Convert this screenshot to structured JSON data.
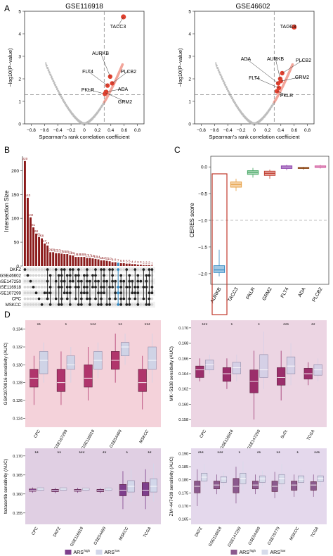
{
  "panel_letters": {
    "A": "A",
    "B": "B",
    "C": "C",
    "D": "D"
  },
  "panel_a": {
    "left": {
      "title": "GSE116918",
      "xlabel": "Spearman's rank correlation coefficient",
      "ylabel": "−log10(P−value)",
      "x_ticks": [
        "−0.8",
        "−0.6",
        "−0.4",
        "−0.2",
        "0",
        "0.2",
        "0.4",
        "0.6",
        "0.8"
      ],
      "y_ticks": [
        "0",
        "1",
        "2",
        "3",
        "4",
        "5"
      ],
      "gene_labels": [
        "TACC3",
        "AURKB",
        "FLT4",
        "PLCB2",
        "PKLR",
        "ADA",
        "GRM2"
      ]
    },
    "right": {
      "title": "GSE46602",
      "xlabel": "Spearman's rank correlation coefficient",
      "ylabel": "−log10(P−value)",
      "x_ticks": [
        "−0.8",
        "−0.6",
        "−0.4",
        "−0.2",
        "0",
        "0.2",
        "0.4",
        "0.6",
        "0.8"
      ],
      "y_ticks": [
        "0",
        "1",
        "2",
        "3",
        "4",
        "5"
      ],
      "gene_labels": [
        "TACC3",
        "ADA",
        "AURKB",
        "PLCB2",
        "FLT4",
        "GRM2",
        "PKLR"
      ]
    },
    "colors": {
      "gray": "#bdbdbd",
      "highlight": "#e0402e",
      "light": "#f2a59a"
    }
  },
  "panel_b": {
    "ylabel": "Intersection Size",
    "y_ticks": [
      "0",
      "50",
      "100",
      "150",
      "200"
    ],
    "sets": [
      "DKFZ",
      "GSE46602",
      "GSE147250",
      "GSE116918",
      "GSE107299",
      "CPC",
      "MSKCC"
    ],
    "bar_color": "#8b1a1a",
    "highlight_color": "#2e86c1"
  },
  "panel_c": {
    "ylabel": "CERES score",
    "y_ticks": [
      "0.0",
      "−0.5",
      "−1.0",
      "−1.5",
      "−2.0"
    ],
    "genes": [
      "AURKB",
      "TACC3",
      "PKLR",
      "GRM2",
      "FLT4",
      "ADA",
      "PLCB2"
    ]
  },
  "panel_d": {
    "legend_high": "ARS",
    "legend_high_sup": "high",
    "legend_low": "ARS",
    "legend_low_sup": "low",
    "plots": [
      {
        "ylabel": "GSK1070916 sensitivity (AUC)",
        "y_ticks": [
          "0.124",
          "0.126",
          "0.128",
          "0.130",
          "0.132",
          "0.134"
        ],
        "cats": [
          "CPC",
          "GSE107299",
          "GSE116918",
          "GSE54460",
          "MSKCC"
        ],
        "sig": [
          "**",
          "*",
          "***",
          "**",
          "***"
        ]
      },
      {
        "ylabel": "MK−5108 sensitivity (AUC)",
        "y_ticks": [
          "0.158",
          "0.160",
          "0.162",
          "0.164",
          "0.166",
          "0.168",
          "0.170"
        ],
        "cats": [
          "CPC",
          "GSE116918",
          "GSE147250",
          "Su2c",
          "TCGA"
        ],
        "sig": [
          "***",
          "*",
          "*",
          "***",
          "**"
        ]
      },
      {
        "ylabel": "tozasertib sensitivity (AUC)",
        "y_ticks": [
          "0.155",
          "0.160",
          "0.165",
          "0.170"
        ],
        "cats": [
          "CPC",
          "DKFZ",
          "GSE116918",
          "GSE54460",
          "MSKCC",
          "TCGA"
        ],
        "sig": [
          "**",
          "**",
          "***",
          "**",
          "*",
          "**"
        ]
      },
      {
        "ylabel": "ZM−447439 sensitivity (AUC)",
        "y_ticks": [
          "0.165",
          "0.170",
          "0.175",
          "0.180",
          "0.185",
          "0.190"
        ],
        "cats": [
          "DKFZ",
          "GSE116918",
          "GSE147250",
          "GSE54460",
          "GSE70770",
          "MSKCC",
          "TCGA"
        ],
        "sig": [
          "***",
          "***",
          "*",
          "**",
          "**",
          "*",
          "***"
        ]
      }
    ]
  },
  "chart_data": [
    {
      "type": "scatter",
      "title": "GSE116918",
      "xlabel": "Spearman's rank correlation coefficient",
      "ylabel": "−log10(P−value)",
      "xlim": [
        -0.9,
        0.9
      ],
      "ylim": [
        0,
        5
      ],
      "threshold_y": 1.3,
      "threshold_x": 0.3,
      "highlighted_genes": [
        {
          "name": "TACC3",
          "x": 0.59,
          "y": 4.75
        },
        {
          "name": "AURKB",
          "x": 0.39,
          "y": 2.1
        },
        {
          "name": "FLT4",
          "x": 0.35,
          "y": 1.7
        },
        {
          "name": "PLCB2",
          "x": 0.42,
          "y": 1.8
        },
        {
          "name": "PKLR",
          "x": 0.31,
          "y": 1.33
        },
        {
          "name": "ADA",
          "x": 0.33,
          "y": 1.42
        },
        {
          "name": "GRM2",
          "x": 0.32,
          "y": 1.38
        }
      ]
    },
    {
      "type": "scatter",
      "title": "GSE46602",
      "xlabel": "Spearman's rank correlation coefficient",
      "ylabel": "−log10(P−value)",
      "xlim": [
        -0.9,
        0.9
      ],
      "ylim": [
        0,
        5
      ],
      "threshold_y": 1.3,
      "threshold_x": 0.3,
      "highlighted_genes": [
        {
          "name": "TACC3",
          "x": 0.6,
          "y": 4.3
        },
        {
          "name": "ADA",
          "x": 0.36,
          "y": 1.8
        },
        {
          "name": "AURKB",
          "x": 0.39,
          "y": 2.0
        },
        {
          "name": "PLCB2",
          "x": 0.42,
          "y": 2.25
        },
        {
          "name": "FLT4",
          "x": 0.37,
          "y": 1.6
        },
        {
          "name": "GRM2",
          "x": 0.4,
          "y": 1.9
        },
        {
          "name": "PKLR",
          "x": 0.34,
          "y": 1.45
        }
      ]
    },
    {
      "type": "bar",
      "title": "",
      "ylabel": "Intersection Size",
      "ylim": [
        0,
        230
      ],
      "values": [
        220,
        143,
        102,
        81,
        68,
        61,
        58,
        47,
        43,
        29,
        29,
        27,
        27,
        26,
        25,
        25,
        23,
        22,
        19,
        19,
        19,
        19,
        17,
        17,
        16,
        15,
        14,
        12,
        12,
        11,
        10,
        8,
        8,
        7,
        6,
        6,
        5,
        5,
        4,
        4,
        3,
        3,
        2,
        2,
        2,
        1
      ],
      "data_labels": [
        "220",
        "143",
        "102",
        "81",
        "68",
        "61",
        "58",
        "47",
        "43",
        "29",
        "29",
        "27",
        "27",
        "26",
        "25",
        "25",
        "23",
        "22",
        "19",
        "19",
        "19",
        "19",
        "17",
        "17",
        "16",
        "15",
        "14",
        "12",
        "12",
        "11",
        "10",
        "8",
        "8",
        "7",
        "6",
        "6",
        "5",
        "5",
        "4",
        "4",
        "3",
        "3",
        "2",
        "2",
        "2",
        "1"
      ],
      "highlight_index": 33,
      "sets": [
        "DKFZ",
        "GSE46602",
        "GSE147250",
        "GSE116918",
        "GSE107299",
        "CPC",
        "MSKCC"
      ]
    },
    {
      "type": "box",
      "title": "",
      "ylabel": "CERES score",
      "ylim": [
        -2.2,
        0.2
      ],
      "categories": [
        "AURKB",
        "TACC3",
        "PKLR",
        "GRM2",
        "FLT4",
        "ADA",
        "PLCB2"
      ],
      "boxes": [
        {
          "min": -2.05,
          "q1": -1.98,
          "median": -1.93,
          "q3": -1.85,
          "max": -1.55,
          "color": "#2e86c1"
        },
        {
          "min": -0.45,
          "q1": -0.38,
          "median": -0.33,
          "q3": -0.28,
          "max": -0.22,
          "color": "#e69b3c"
        },
        {
          "min": -0.2,
          "q1": -0.14,
          "median": -0.1,
          "q3": -0.07,
          "max": -0.02,
          "color": "#3da35d"
        },
        {
          "min": -0.22,
          "q1": -0.16,
          "median": -0.12,
          "q3": -0.08,
          "max": -0.05,
          "color": "#c0392b"
        },
        {
          "min": -0.06,
          "q1": -0.03,
          "median": 0.0,
          "q3": 0.02,
          "max": 0.04,
          "color": "#8e44ad"
        },
        {
          "min": -0.05,
          "q1": -0.03,
          "median": -0.02,
          "q3": -0.01,
          "max": 0.0,
          "color": "#8b4513"
        },
        {
          "min": -0.03,
          "q1": -0.01,
          "median": 0.0,
          "q3": 0.02,
          "max": 0.04,
          "color": "#d35fa0"
        }
      ],
      "reference_line": -1.0
    },
    {
      "type": "box",
      "title": "",
      "ylabel": "GSK1070916 sensitivity (AUC)",
      "ylim": [
        0.123,
        0.135
      ],
      "categories": [
        "CPC",
        "GSE107299",
        "GSE116918",
        "GSE54460",
        "MSKCC"
      ],
      "series": [
        {
          "name": "ARShigh",
          "boxes": [
            [
              0.1255,
              0.1275,
              0.1285,
              0.1295,
              0.131
            ],
            [
              0.1255,
              0.127,
              0.128,
              0.1295,
              0.1315
            ],
            [
              0.126,
              0.1275,
              0.1285,
              0.13,
              0.132
            ],
            [
              0.128,
              0.1295,
              0.1305,
              0.1315,
              0.1335
            ],
            [
              0.125,
              0.127,
              0.128,
              0.1295,
              0.131
            ]
          ]
        },
        {
          "name": "ARSlow",
          "boxes": [
            [
              0.128,
              0.129,
              0.1305,
              0.1315,
              0.1325
            ],
            [
              0.128,
              0.1295,
              0.13,
              0.131,
              0.132
            ],
            [
              0.1285,
              0.1295,
              0.1305,
              0.1315,
              0.1325
            ],
            [
              0.13,
              0.131,
              0.132,
              0.1325,
              0.1335
            ],
            [
              0.128,
              0.1295,
              0.1305,
              0.132,
              0.1335
            ]
          ]
        }
      ],
      "significance": [
        "**",
        "*",
        "***",
        "**",
        "***"
      ]
    },
    {
      "type": "box",
      "title": "",
      "ylabel": "MK−5108 sensitivity (AUC)",
      "ylim": [
        0.157,
        0.171
      ],
      "categories": [
        "CPC",
        "GSE116918",
        "GSE147250",
        "Su2c",
        "TCGA"
      ],
      "series": [
        {
          "name": "ARShigh",
          "boxes": [
            [
              0.163,
              0.1635,
              0.1645,
              0.165,
              0.166
            ],
            [
              0.162,
              0.163,
              0.164,
              0.1648,
              0.166
            ],
            [
              0.158,
              0.1615,
              0.163,
              0.1645,
              0.167
            ],
            [
              0.1605,
              0.1625,
              0.1635,
              0.1648,
              0.167
            ],
            [
              0.1625,
              0.1633,
              0.164,
              0.1647,
              0.1655
            ]
          ]
        },
        {
          "name": "ARSlow",
          "boxes": [
            [
              0.164,
              0.1645,
              0.1652,
              0.1658,
              0.1665
            ],
            [
              0.163,
              0.164,
              0.1648,
              0.1655,
              0.1665
            ],
            [
              0.162,
              0.1635,
              0.1645,
              0.1665,
              0.1695
            ],
            [
              0.1625,
              0.164,
              0.165,
              0.1662,
              0.168
            ],
            [
              0.163,
              0.1638,
              0.1645,
              0.1652,
              0.166
            ]
          ]
        }
      ],
      "significance": [
        "***",
        "*",
        "*",
        "***",
        "**"
      ]
    },
    {
      "type": "box",
      "title": "",
      "ylabel": "tozasertib sensitivity (AUC)",
      "ylim": [
        0.152,
        0.172
      ],
      "categories": [
        "CPC",
        "DKFZ",
        "GSE116918",
        "GSE54460",
        "MSKCC",
        "TCGA"
      ],
      "series": [
        {
          "name": "ARShigh",
          "boxes": [
            [
              0.1603,
              0.1607,
              0.161,
              0.1613,
              0.1617
            ],
            [
              0.1602,
              0.1606,
              0.1609,
              0.1612,
              0.1616
            ],
            [
              0.1603,
              0.1607,
              0.161,
              0.1612,
              0.1616
            ],
            [
              0.1602,
              0.1606,
              0.1609,
              0.1612,
              0.1615
            ],
            [
              0.156,
              0.1595,
              0.161,
              0.1625,
              0.166
            ],
            [
              0.156,
              0.1595,
              0.161,
              0.163,
              0.1665
            ]
          ]
        },
        {
          "name": "ARSlow",
          "boxes": [
            [
              0.1606,
              0.161,
              0.1613,
              0.1616,
              0.162
            ],
            [
              0.1606,
              0.161,
              0.1613,
              0.1616,
              0.162
            ],
            [
              0.1606,
              0.161,
              0.1613,
              0.1615,
              0.1619
            ],
            [
              0.1606,
              0.161,
              0.1613,
              0.1615,
              0.1619
            ],
            [
              0.158,
              0.1605,
              0.162,
              0.1635,
              0.1665
            ],
            [
              0.158,
              0.1605,
              0.162,
              0.164,
              0.168
            ]
          ]
        }
      ],
      "significance": [
        "**",
        "**",
        "***",
        "**",
        "*",
        "**"
      ]
    },
    {
      "type": "box",
      "title": "",
      "ylabel": "ZM−447439 sensitivity (AUC)",
      "ylim": [
        0.163,
        0.192
      ],
      "categories": [
        "DKFZ",
        "GSE116918",
        "GSE147250",
        "GSE54460",
        "GSE70770",
        "MSKCC",
        "TCGA"
      ],
      "series": [
        {
          "name": "ARShigh",
          "boxes": [
            [
              0.17,
              0.175,
              0.1775,
              0.1795,
              0.184
            ],
            [
              0.1745,
              0.1765,
              0.178,
              0.1795,
              0.182
            ],
            [
              0.171,
              0.175,
              0.1775,
              0.1805,
              0.185
            ],
            [
              0.1745,
              0.1765,
              0.178,
              0.1795,
              0.182
            ],
            [
              0.173,
              0.1755,
              0.1775,
              0.1795,
              0.183
            ],
            [
              0.1735,
              0.176,
              0.178,
              0.1795,
              0.182
            ],
            [
              0.1735,
              0.176,
              0.178,
              0.1793,
              0.182
            ]
          ]
        },
        {
          "name": "ARSlow",
          "boxes": [
            [
              0.177,
              0.1795,
              0.181,
              0.1825,
              0.186
            ],
            [
              0.1775,
              0.179,
              0.1803,
              0.1812,
              0.183
            ],
            [
              0.176,
              0.1785,
              0.1805,
              0.1825,
              0.187
            ],
            [
              0.1775,
              0.179,
              0.1803,
              0.1815,
              0.1835
            ],
            [
              0.176,
              0.1785,
              0.1805,
              0.182,
              0.186
            ],
            [
              0.177,
              0.179,
              0.1802,
              0.1815,
              0.184
            ],
            [
              0.1775,
              0.1793,
              0.1805,
              0.1815,
              0.184
            ]
          ]
        }
      ],
      "significance": [
        "***",
        "***",
        "*",
        "**",
        "**",
        "*",
        "***"
      ]
    }
  ]
}
